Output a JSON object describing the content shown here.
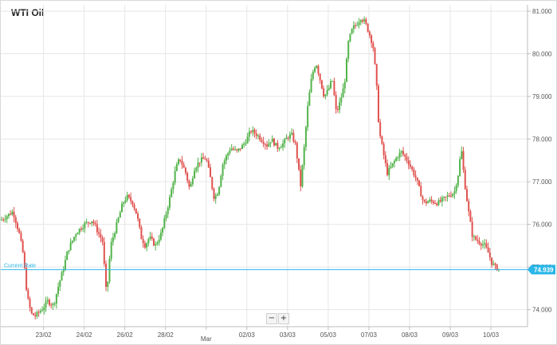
{
  "chart_data": {
    "type": "candlestick",
    "title": "WTI Oil",
    "y_ticks": [
      "74.000",
      "75.000",
      "76.000",
      "77.000",
      "78.000",
      "79.000",
      "80.000",
      "81.000"
    ],
    "y_tick_values": [
      74,
      75,
      76,
      77,
      78,
      79,
      80,
      81
    ],
    "ylim": [
      73.6,
      81.15
    ],
    "x_ticks": [
      "23/02",
      "24/02",
      "26/02",
      "28/02",
      "Mar",
      "02/03",
      "03/03",
      "05/03",
      "07/03",
      "08/03",
      "09/03",
      "10/03"
    ],
    "x_tick_positions": [
      0.5,
      1.5,
      2.5,
      3.5,
      4.5,
      5.5,
      6.5,
      7.5,
      8.5,
      9.5,
      10.5,
      11.5
    ],
    "x_range": [
      -0.55,
      12.4
    ],
    "grid": true,
    "current_rate": {
      "label": "Current Rate",
      "value": 74.939,
      "value_text": "74.939"
    },
    "close_path": [
      [
        -0.55,
        76.1
      ],
      [
        -0.4,
        76.2
      ],
      [
        -0.25,
        76.3
      ],
      [
        -0.1,
        75.8
      ],
      [
        0.0,
        75.3
      ],
      [
        0.1,
        74.3
      ],
      [
        0.2,
        73.9
      ],
      [
        0.3,
        73.85
      ],
      [
        0.4,
        73.95
      ],
      [
        0.5,
        74.05
      ],
      [
        0.6,
        74.2
      ],
      [
        0.75,
        74.1
      ],
      [
        0.85,
        74.5
      ],
      [
        1.0,
        75.0
      ],
      [
        1.1,
        75.4
      ],
      [
        1.3,
        75.8
      ],
      [
        1.5,
        76.0
      ],
      [
        1.7,
        76.1
      ],
      [
        1.8,
        75.9
      ],
      [
        1.95,
        75.6
      ],
      [
        2.05,
        74.3
      ],
      [
        2.15,
        75.5
      ],
      [
        2.3,
        76.0
      ],
      [
        2.45,
        76.5
      ],
      [
        2.55,
        76.65
      ],
      [
        2.7,
        76.5
      ],
      [
        2.8,
        76.2
      ],
      [
        2.9,
        75.7
      ],
      [
        3.0,
        75.5
      ],
      [
        3.1,
        75.7
      ],
      [
        3.25,
        75.5
      ],
      [
        3.4,
        75.8
      ],
      [
        3.5,
        76.2
      ],
      [
        3.6,
        76.6
      ],
      [
        3.75,
        77.3
      ],
      [
        3.85,
        77.55
      ],
      [
        4.0,
        77.2
      ],
      [
        4.1,
        76.8
      ],
      [
        4.2,
        77.3
      ],
      [
        4.35,
        77.5
      ],
      [
        4.5,
        77.55
      ],
      [
        4.6,
        77.1
      ],
      [
        4.7,
        76.6
      ],
      [
        4.8,
        76.8
      ],
      [
        4.9,
        77.4
      ],
      [
        5.0,
        77.6
      ],
      [
        5.1,
        77.8
      ],
      [
        5.25,
        77.7
      ],
      [
        5.4,
        77.85
      ],
      [
        5.5,
        78.0
      ],
      [
        5.6,
        78.2
      ],
      [
        5.75,
        78.1
      ],
      [
        5.9,
        77.95
      ],
      [
        6.0,
        77.85
      ],
      [
        6.1,
        78.0
      ],
      [
        6.25,
        77.8
      ],
      [
        6.4,
        77.9
      ],
      [
        6.5,
        78.05
      ],
      [
        6.6,
        78.1
      ],
      [
        6.7,
        77.85
      ],
      [
        6.82,
        76.9
      ],
      [
        6.9,
        77.7
      ],
      [
        7.0,
        78.8
      ],
      [
        7.1,
        79.5
      ],
      [
        7.2,
        79.8
      ],
      [
        7.3,
        79.4
      ],
      [
        7.4,
        79.0
      ],
      [
        7.5,
        79.15
      ],
      [
        7.6,
        79.4
      ],
      [
        7.7,
        78.6
      ],
      [
        7.8,
        78.9
      ],
      [
        7.9,
        79.3
      ],
      [
        8.0,
        80.3
      ],
      [
        8.1,
        80.6
      ],
      [
        8.2,
        80.7
      ],
      [
        8.3,
        80.85
      ],
      [
        8.4,
        80.75
      ],
      [
        8.5,
        80.5
      ],
      [
        8.6,
        80.2
      ],
      [
        8.68,
        79.4
      ],
      [
        8.75,
        78.2
      ],
      [
        8.85,
        77.7
      ],
      [
        8.95,
        77.2
      ],
      [
        9.05,
        77.35
      ],
      [
        9.2,
        77.6
      ],
      [
        9.3,
        77.7
      ],
      [
        9.45,
        77.5
      ],
      [
        9.55,
        77.3
      ],
      [
        9.65,
        77.1
      ],
      [
        9.75,
        76.8
      ],
      [
        9.85,
        76.5
      ],
      [
        10.0,
        76.55
      ],
      [
        10.2,
        76.5
      ],
      [
        10.35,
        76.6
      ],
      [
        10.5,
        76.7
      ],
      [
        10.6,
        76.75
      ],
      [
        10.7,
        77.2
      ],
      [
        10.77,
        77.8
      ],
      [
        10.85,
        77.0
      ],
      [
        10.95,
        76.3
      ],
      [
        11.05,
        75.7
      ],
      [
        11.2,
        75.6
      ],
      [
        11.35,
        75.5
      ],
      [
        11.45,
        75.3
      ],
      [
        11.52,
        75.1
      ],
      [
        11.6,
        75.0
      ],
      [
        11.7,
        74.95
      ]
    ]
  }
}
